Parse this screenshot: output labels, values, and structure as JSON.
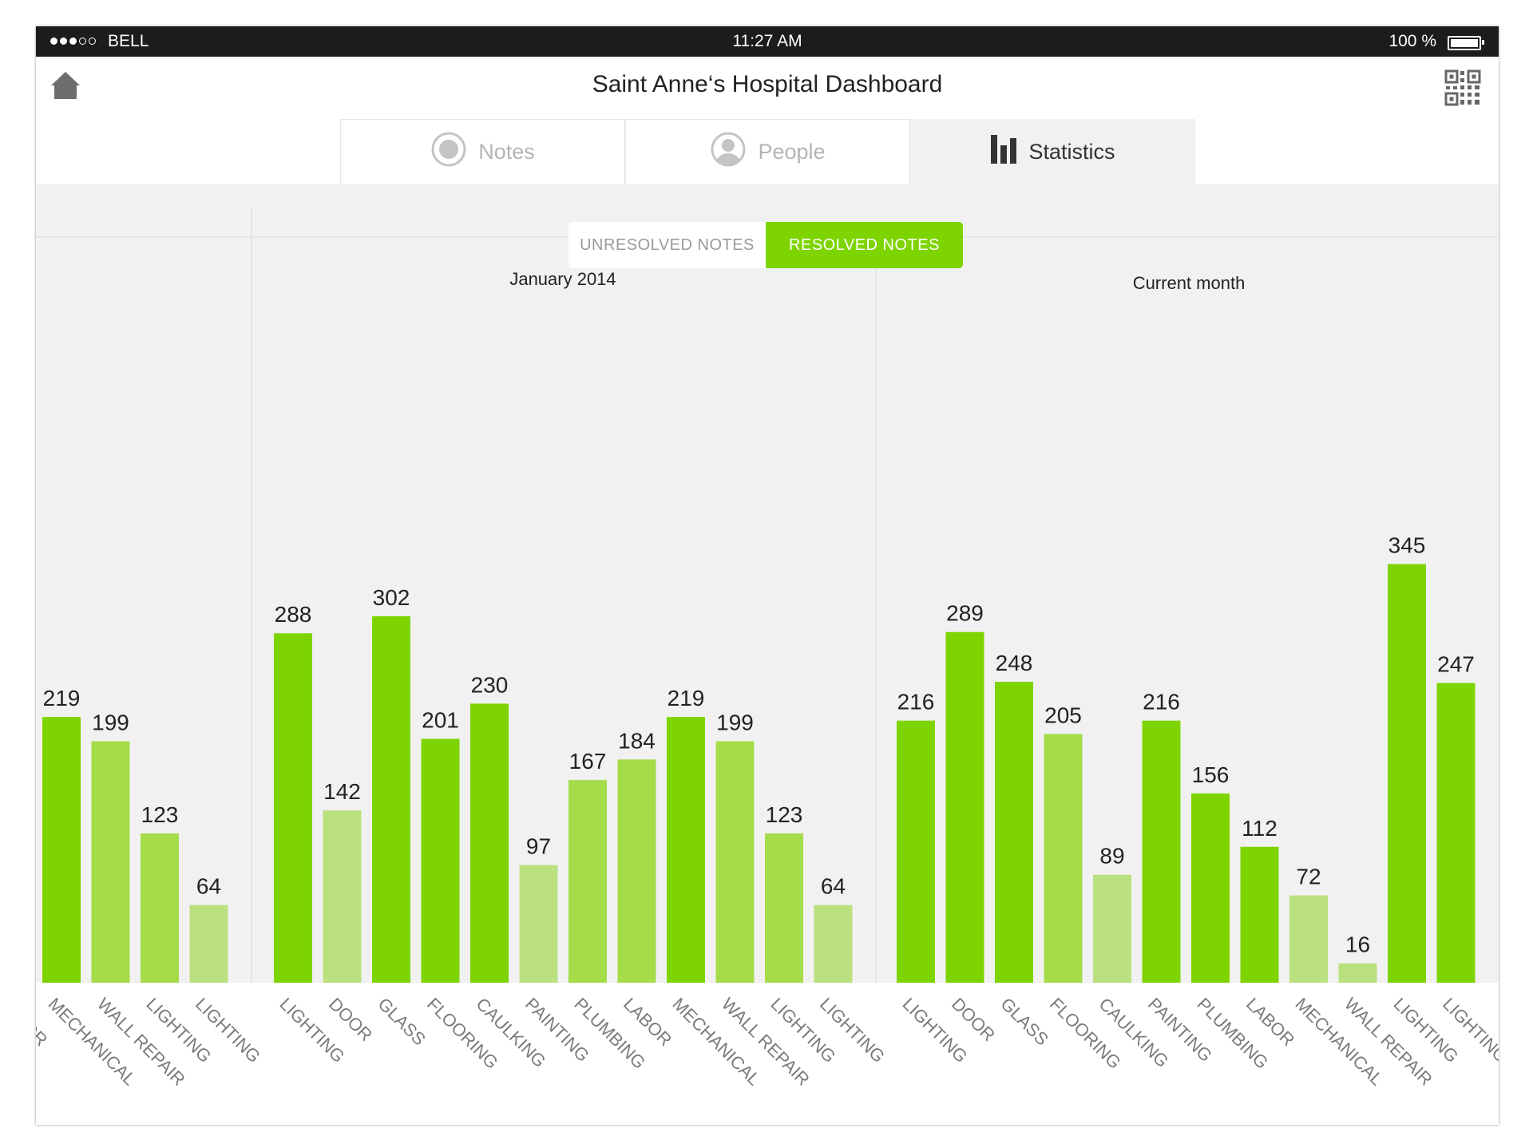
{
  "status_bar": {
    "carrier": "BELL",
    "time": "11:27 AM",
    "battery": "100 %"
  },
  "header": {
    "title": "Saint Anne‘s Hospital Dashboard"
  },
  "tabs": [
    {
      "label": "Notes",
      "icon": "record-circle-icon",
      "active": false
    },
    {
      "label": "People",
      "icon": "person-icon",
      "active": false
    },
    {
      "label": "Statistics",
      "icon": "bar-chart-icon",
      "active": true
    }
  ],
  "toggle": {
    "unresolved_label": "UNRESOLVED NOTES",
    "resolved_label": "RESOLVED NOTES",
    "selected": "resolved"
  },
  "colors": {
    "accent": "#7ed400",
    "bar_dark": "#7ed400",
    "bar_mid": "#a4dc4a",
    "bar_light": "#bbe07f",
    "panel_bg": "#f1f1f1"
  },
  "chart_data": [
    {
      "type": "bar",
      "title": "",
      "partial": true,
      "categories": [
        "LABOR",
        "MECHANICAL",
        "WALL REPAIR",
        "LIGHTING",
        "LIGHTING"
      ],
      "values": [
        null,
        219,
        199,
        123,
        64
      ],
      "shades": [
        "",
        "dark",
        "mid",
        "mid",
        "light"
      ]
    },
    {
      "type": "bar",
      "title": "January 2014",
      "categories": [
        "LIGHTING",
        "DOOR",
        "GLASS",
        "FLOORING",
        "CAULKING",
        "PAINTING",
        "PLUMBING",
        "LABOR",
        "MECHANICAL",
        "WALL REPAIR",
        "LIGHTING",
        "LIGHTING"
      ],
      "values": [
        288,
        142,
        302,
        201,
        230,
        97,
        167,
        184,
        219,
        199,
        123,
        64
      ],
      "shades": [
        "dark",
        "light",
        "dark",
        "dark",
        "dark",
        "light",
        "mid",
        "mid",
        "dark",
        "mid",
        "mid",
        "light"
      ]
    },
    {
      "type": "bar",
      "title": "Current month",
      "categories": [
        "LIGHTING",
        "DOOR",
        "GLASS",
        "FLOORING",
        "CAULKING",
        "PAINTING",
        "PLUMBING",
        "LABOR",
        "MECHANICAL",
        "WALL REPAIR",
        "LIGHTING",
        "LIGHTING"
      ],
      "values": [
        216,
        289,
        248,
        205,
        89,
        216,
        156,
        112,
        72,
        16,
        345,
        247
      ],
      "shades": [
        "dark",
        "dark",
        "dark",
        "mid",
        "light",
        "dark",
        "dark",
        "dark",
        "light",
        "light",
        "dark",
        "dark"
      ]
    }
  ]
}
